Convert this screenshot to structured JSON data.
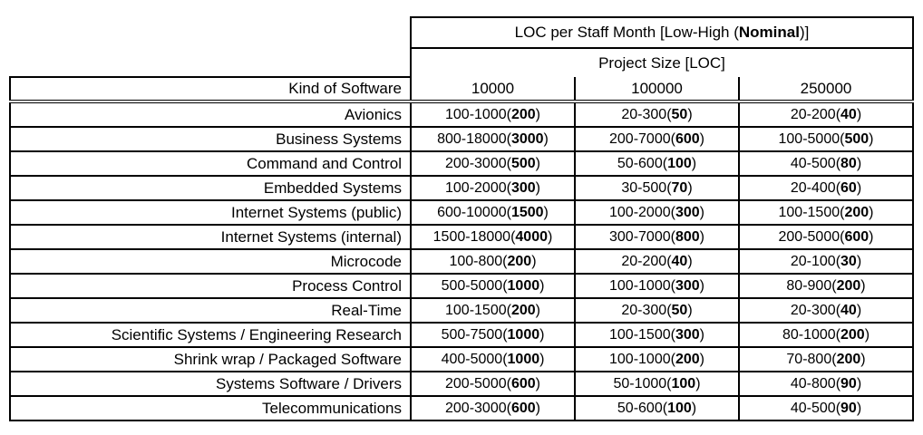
{
  "table": {
    "title_pre": "LOC per Staff Month [Low-High (",
    "title_bold": "Nominal",
    "title_post": ")]",
    "subtitle": "Project Size [LOC]",
    "kind_header": "Kind of Software",
    "size_headers": [
      "10000",
      "100000",
      "250000"
    ],
    "paren_open": "(",
    "paren_close": ")",
    "rows": [
      {
        "kind": "Avionics",
        "cells": [
          {
            "range": "100-1000",
            "nominal": "200"
          },
          {
            "range": "20-300",
            "nominal": "50"
          },
          {
            "range": "20-200",
            "nominal": "40"
          }
        ]
      },
      {
        "kind": "Business Systems",
        "cells": [
          {
            "range": "800-18000",
            "nominal": "3000"
          },
          {
            "range": "200-7000",
            "nominal": "600"
          },
          {
            "range": "100-5000",
            "nominal": "500"
          }
        ]
      },
      {
        "kind": "Command and Control",
        "cells": [
          {
            "range": "200-3000",
            "nominal": "500"
          },
          {
            "range": "50-600",
            "nominal": "100"
          },
          {
            "range": "40-500",
            "nominal": "80"
          }
        ]
      },
      {
        "kind": "Embedded Systems",
        "cells": [
          {
            "range": "100-2000",
            "nominal": "300"
          },
          {
            "range": "30-500",
            "nominal": "70"
          },
          {
            "range": "20-400",
            "nominal": "60"
          }
        ]
      },
      {
        "kind": "Internet Systems (public)",
        "cells": [
          {
            "range": "600-10000",
            "nominal": "1500"
          },
          {
            "range": "100-2000",
            "nominal": "300"
          },
          {
            "range": "100-1500",
            "nominal": "200"
          }
        ]
      },
      {
        "kind": "Internet Systems (internal)",
        "cells": [
          {
            "range": "1500-18000",
            "nominal": "4000"
          },
          {
            "range": "300-7000",
            "nominal": "800"
          },
          {
            "range": "200-5000",
            "nominal": "600"
          }
        ]
      },
      {
        "kind": "Microcode",
        "cells": [
          {
            "range": "100-800",
            "nominal": "200"
          },
          {
            "range": "20-200",
            "nominal": "40"
          },
          {
            "range": "20-100",
            "nominal": "30"
          }
        ]
      },
      {
        "kind": "Process Control",
        "cells": [
          {
            "range": "500-5000",
            "nominal": "1000"
          },
          {
            "range": "100-1000",
            "nominal": "300"
          },
          {
            "range": "80-900",
            "nominal": "200"
          }
        ]
      },
      {
        "kind": "Real-Time",
        "cells": [
          {
            "range": "100-1500",
            "nominal": "200"
          },
          {
            "range": "20-300",
            "nominal": "50"
          },
          {
            "range": "20-300",
            "nominal": "40"
          }
        ]
      },
      {
        "kind": "Scientific Systems / Engineering Research",
        "cells": [
          {
            "range": "500-7500",
            "nominal": "1000"
          },
          {
            "range": "100-1500",
            "nominal": "300"
          },
          {
            "range": "80-1000",
            "nominal": "200"
          }
        ]
      },
      {
        "kind": "Shrink wrap / Packaged Software",
        "cells": [
          {
            "range": "400-5000",
            "nominal": "1000"
          },
          {
            "range": "100-1000",
            "nominal": "200"
          },
          {
            "range": "70-800",
            "nominal": "200"
          }
        ]
      },
      {
        "kind": "Systems Software / Drivers",
        "cells": [
          {
            "range": "200-5000",
            "nominal": "600"
          },
          {
            "range": "50-1000",
            "nominal": "100"
          },
          {
            "range": "40-800",
            "nominal": "90"
          }
        ]
      },
      {
        "kind": "Telecommunications",
        "cells": [
          {
            "range": "200-3000",
            "nominal": "600"
          },
          {
            "range": "50-600",
            "nominal": "100"
          },
          {
            "range": "40-500",
            "nominal": "90"
          }
        ]
      }
    ]
  }
}
